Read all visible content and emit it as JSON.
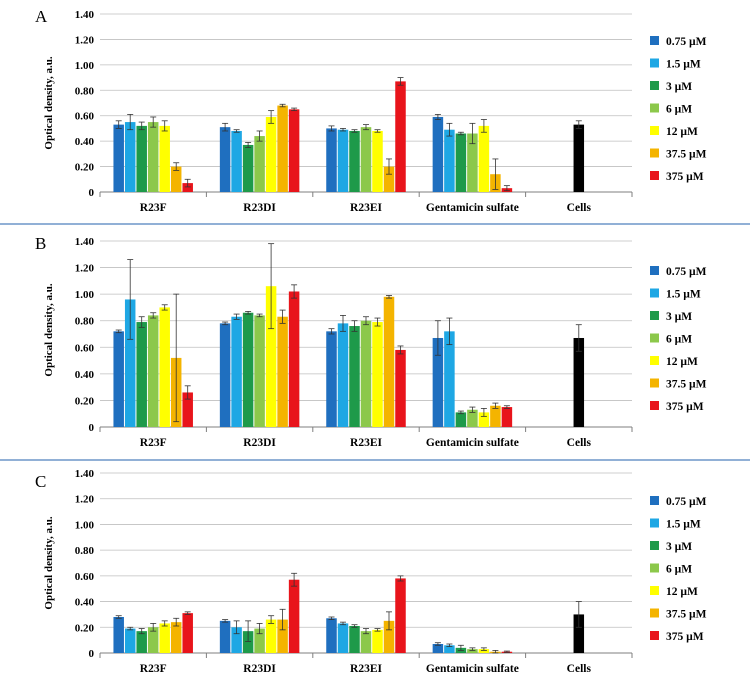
{
  "chart_data": [
    {
      "type": "bar",
      "panel_label": "A",
      "ylabel": "Optical density, a.u.",
      "xlabel": "",
      "ylim": [
        0,
        1.4
      ],
      "yticks": [
        "0",
        "0.20",
        "0.40",
        "0.60",
        "0.80",
        "1.00",
        "1.20",
        "1.40"
      ],
      "categories": [
        "R23F",
        "R23DI",
        "R23EI",
        "Gentamicin sulfate",
        "Cells"
      ],
      "legend_position": "right",
      "series": [
        {
          "name": "0.75 µM",
          "color": "#1f6fbf",
          "values": [
            0.53,
            0.51,
            0.5,
            0.59,
            null
          ],
          "errors": [
            0.03,
            0.03,
            0.02,
            0.02,
            null
          ]
        },
        {
          "name": "1.5 µM",
          "color": "#1ea7e4",
          "values": [
            0.55,
            0.48,
            0.49,
            0.49,
            null
          ],
          "errors": [
            0.06,
            0.01,
            0.01,
            0.05,
            null
          ]
        },
        {
          "name": "3 µM",
          "color": "#1e9a4a",
          "values": [
            0.52,
            0.37,
            0.48,
            0.46,
            null
          ],
          "errors": [
            0.03,
            0.02,
            0.01,
            0.01,
            null
          ]
        },
        {
          "name": "6 µM",
          "color": "#8cc84b",
          "values": [
            0.55,
            0.44,
            0.51,
            0.46,
            null
          ],
          "errors": [
            0.04,
            0.04,
            0.02,
            0.08,
            null
          ]
        },
        {
          "name": "12 µM",
          "color": "#ffff00",
          "values": [
            0.52,
            0.59,
            0.48,
            0.52,
            null
          ],
          "errors": [
            0.04,
            0.05,
            0.01,
            0.05,
            null
          ]
        },
        {
          "name": "37.5 µM",
          "color": "#f4b400",
          "values": [
            0.2,
            0.68,
            0.2,
            0.14,
            null
          ],
          "errors": [
            0.03,
            0.01,
            0.06,
            0.12,
            null
          ]
        },
        {
          "name": "375 µM",
          "color": "#e8141b",
          "values": [
            0.07,
            0.65,
            0.87,
            0.03,
            null
          ],
          "errors": [
            0.03,
            0.01,
            0.03,
            0.02,
            null
          ]
        },
        {
          "name": "Cells",
          "color": "#000000",
          "in_legend": false,
          "values": [
            null,
            null,
            null,
            null,
            0.53
          ],
          "errors": [
            null,
            null,
            null,
            null,
            0.03
          ]
        }
      ]
    },
    {
      "type": "bar",
      "panel_label": "B",
      "ylabel": "Optical density, a.u.",
      "xlabel": "",
      "ylim": [
        0,
        1.4
      ],
      "yticks": [
        "0",
        "0.20",
        "0.40",
        "0.60",
        "0.80",
        "1.00",
        "1.20",
        "1.40"
      ],
      "categories": [
        "R23F",
        "R23DI",
        "R23EI",
        "Gentamicin sulfate",
        "Cells"
      ],
      "legend_position": "right",
      "series": [
        {
          "name": "0.75 µM",
          "color": "#1f6fbf",
          "values": [
            0.72,
            0.78,
            0.72,
            0.67,
            null
          ],
          "errors": [
            0.01,
            0.01,
            0.02,
            0.13,
            null
          ]
        },
        {
          "name": "1.5 µM",
          "color": "#1ea7e4",
          "values": [
            0.96,
            0.83,
            0.78,
            0.72,
            null
          ],
          "errors": [
            0.3,
            0.02,
            0.06,
            0.1,
            null
          ]
        },
        {
          "name": "3 µM",
          "color": "#1e9a4a",
          "values": [
            0.79,
            0.86,
            0.76,
            0.11,
            null
          ],
          "errors": [
            0.04,
            0.01,
            0.04,
            0.01,
            null
          ]
        },
        {
          "name": "6 µM",
          "color": "#8cc84b",
          "values": [
            0.84,
            0.84,
            0.8,
            0.13,
            null
          ],
          "errors": [
            0.02,
            0.01,
            0.03,
            0.02,
            null
          ]
        },
        {
          "name": "12 µM",
          "color": "#ffff00",
          "values": [
            0.9,
            1.06,
            0.79,
            0.11,
            null
          ],
          "errors": [
            0.02,
            0.32,
            0.03,
            0.03,
            null
          ]
        },
        {
          "name": "37.5 µM",
          "color": "#f4b400",
          "values": [
            0.52,
            0.83,
            0.98,
            0.16,
            null
          ],
          "errors": [
            0.48,
            0.05,
            0.01,
            0.02,
            null
          ]
        },
        {
          "name": "375 µM",
          "color": "#e8141b",
          "values": [
            0.26,
            1.02,
            0.58,
            0.15,
            null
          ],
          "errors": [
            0.05,
            0.05,
            0.03,
            0.01,
            null
          ]
        },
        {
          "name": "Cells",
          "color": "#000000",
          "in_legend": false,
          "values": [
            null,
            null,
            null,
            null,
            0.67
          ],
          "errors": [
            null,
            null,
            null,
            null,
            0.1
          ]
        }
      ]
    },
    {
      "type": "bar",
      "panel_label": "C",
      "ylabel": "Optical density, a.u.",
      "xlabel": "",
      "ylim": [
        0,
        1.4
      ],
      "yticks": [
        "0",
        "0.20",
        "0.40",
        "0.60",
        "0.80",
        "1.00",
        "1.20",
        "1.40"
      ],
      "categories": [
        "R23F",
        "R23DI",
        "R23EI",
        "Gentamicin sulfate",
        "Cells"
      ],
      "legend_position": "right",
      "series": [
        {
          "name": "0.75 µM",
          "color": "#1f6fbf",
          "values": [
            0.28,
            0.25,
            0.27,
            0.07,
            null
          ],
          "errors": [
            0.01,
            0.01,
            0.01,
            0.01,
            null
          ]
        },
        {
          "name": "1.5 µM",
          "color": "#1ea7e4",
          "values": [
            0.19,
            0.2,
            0.23,
            0.06,
            null
          ],
          "errors": [
            0.01,
            0.05,
            0.01,
            0.01,
            null
          ]
        },
        {
          "name": "3 µM",
          "color": "#1e9a4a",
          "values": [
            0.17,
            0.17,
            0.21,
            0.04,
            null
          ],
          "errors": [
            0.02,
            0.08,
            0.01,
            0.02,
            null
          ]
        },
        {
          "name": "6 µM",
          "color": "#8cc84b",
          "values": [
            0.2,
            0.19,
            0.17,
            0.03,
            null
          ],
          "errors": [
            0.03,
            0.04,
            0.02,
            0.01,
            null
          ]
        },
        {
          "name": "12 µM",
          "color": "#ffff00",
          "values": [
            0.23,
            0.26,
            0.18,
            0.03,
            null
          ],
          "errors": [
            0.02,
            0.03,
            0.01,
            0.01,
            null
          ]
        },
        {
          "name": "37.5 µM",
          "color": "#f4b400",
          "values": [
            0.24,
            0.26,
            0.25,
            0.01,
            null
          ],
          "errors": [
            0.03,
            0.08,
            0.07,
            0.01,
            null
          ]
        },
        {
          "name": "375 µM",
          "color": "#e8141b",
          "values": [
            0.31,
            0.57,
            0.58,
            0.01,
            null
          ],
          "errors": [
            0.01,
            0.05,
            0.02,
            0.005,
            null
          ]
        },
        {
          "name": "Cells",
          "color": "#000000",
          "in_legend": false,
          "values": [
            null,
            null,
            null,
            null,
            0.3
          ],
          "errors": [
            null,
            null,
            null,
            null,
            0.1
          ]
        }
      ]
    }
  ]
}
